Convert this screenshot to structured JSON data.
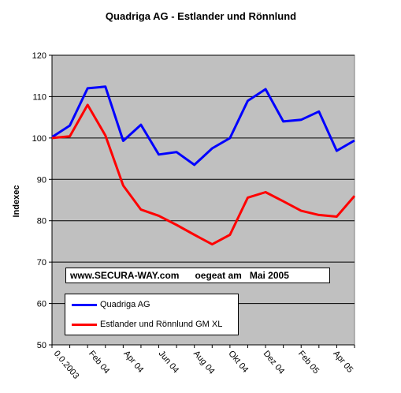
{
  "chart_data": {
    "type": "line",
    "title": "Quadriga AG - Estlander und Rönnlund",
    "ylabel": "Indexec",
    "xlabel": "",
    "ylim": [
      50,
      120
    ],
    "yticks": [
      50,
      60,
      70,
      80,
      90,
      100,
      110,
      120
    ],
    "grid": true,
    "plot_background": "#c0c0c0",
    "x_labels": [
      "0.0.2003",
      "Feb 04",
      "Apr 04",
      "Jun 04",
      "Aug 04",
      "Okt 04",
      "Dez 04",
      "Feb 05",
      "Apr 05"
    ],
    "series": [
      {
        "name": "Quadriga AG",
        "color": "#0000ff",
        "values": [
          100.2,
          103,
          112,
          112.4,
          99.3,
          103.2,
          96,
          96.6,
          93.5,
          97.5,
          100,
          109,
          111.8,
          104,
          104.4,
          106.4,
          96.9,
          99.4
        ]
      },
      {
        "name": "Estlander und Rönnlund  GM XL",
        "color": "#ff0000",
        "values": [
          100,
          100.4,
          108,
          100.6,
          88.5,
          82.7,
          81.2,
          79,
          76.6,
          74.3,
          76.6,
          85.6,
          86.9,
          84.7,
          82.4,
          81.4,
          81,
          86
        ]
      }
    ],
    "annotation": "www.SECURA-WAY.com      oegeat am   Mai 2005",
    "legend_position": "inside-bottom-left"
  }
}
